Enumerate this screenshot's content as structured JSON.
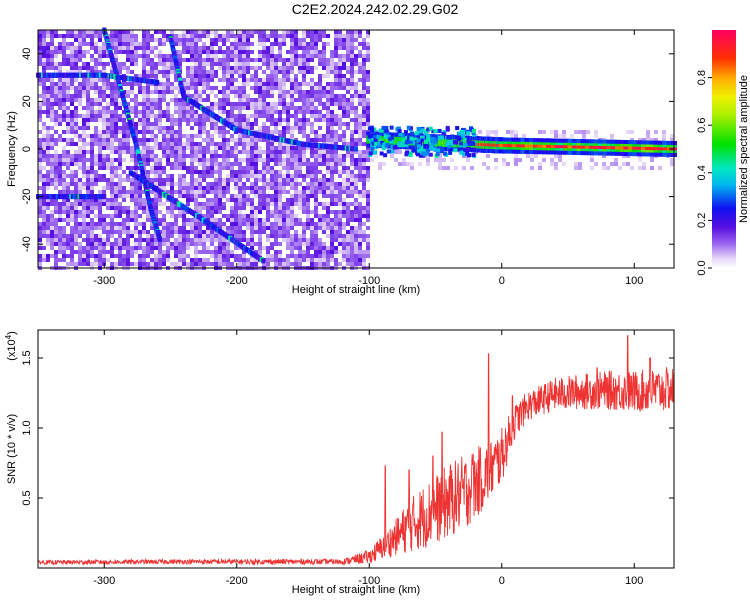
{
  "figure": {
    "title": "C2E2.2024.242.02.29.G02"
  },
  "chart_data": [
    {
      "type": "heatmap",
      "title": "C2E2.2024.242.02.29.G02",
      "xlabel": "Height of straight line (km)",
      "ylabel": "Frequency (Hz)",
      "xlim": [
        -350,
        130
      ],
      "ylim": [
        -50,
        50
      ],
      "x_ticks": [
        -300,
        -200,
        -100,
        0,
        100
      ],
      "x_tick_labels": [
        "-300",
        "-200",
        "-100",
        "0",
        "100"
      ],
      "y_ticks": [
        -40,
        -20,
        0,
        20,
        40
      ],
      "y_tick_labels": [
        "-40",
        "-20",
        "0",
        "20",
        "40"
      ],
      "colorbar": {
        "label": "Normalized spectral amplitude",
        "range": [
          0,
          1
        ],
        "ticks": [
          0.0,
          0.2,
          0.4,
          0.6,
          0.8
        ],
        "tick_labels": [
          "0.0",
          "0.2",
          "0.4",
          "0.6",
          "0.8"
        ],
        "colormap": "rainbow (white→purple→blue→cyan→green→yellow→orange→red)"
      },
      "features": [
        {
          "kind": "dispersive-track",
          "points": [
            [
              -300,
              50
            ],
            [
              -290,
              30
            ],
            [
              -275,
              0
            ],
            [
              -265,
              -25
            ],
            [
              -258,
              -38
            ]
          ]
        },
        {
          "kind": "dispersive-track",
          "points": [
            [
              -250,
              47
            ],
            [
              -240,
              22
            ],
            [
              -200,
              8
            ],
            [
              -150,
              2
            ],
            [
              -110,
              0
            ]
          ]
        },
        {
          "kind": "diagonal-track",
          "points": [
            [
              -280,
              -10
            ],
            [
              -230,
              -28
            ],
            [
              -180,
              -47
            ]
          ]
        },
        {
          "kind": "band",
          "points": [
            [
              -350,
              31
            ],
            [
              -300,
              31
            ],
            [
              -260,
              28
            ]
          ]
        },
        {
          "kind": "band",
          "points": [
            [
              -350,
              -20
            ],
            [
              -300,
              -20
            ]
          ]
        },
        {
          "kind": "carrier-line",
          "points": [
            [
              -100,
              4
            ],
            [
              -60,
              3
            ],
            [
              -20,
              2
            ],
            [
              0,
              1.5
            ],
            [
              130,
              0
            ]
          ]
        }
      ],
      "grid": false,
      "legend": "none"
    },
    {
      "type": "line",
      "xlabel": "Height of straight line (km)",
      "ylabel": "SNR (10 * v/v)",
      "y_multiplier_label": "(x10",
      "y_multiplier_exp": "4",
      "y_multiplier_close": ")",
      "xlim": [
        -350,
        130
      ],
      "ylim": [
        0,
        17000
      ],
      "x_ticks": [
        -300,
        -200,
        -100,
        0,
        100
      ],
      "x_tick_labels": [
        "-300",
        "-200",
        "-100",
        "0",
        "100"
      ],
      "y_ticks": [
        5000,
        10000,
        15000
      ],
      "y_tick_labels": [
        "0.5",
        "1.0",
        "1.5"
      ],
      "series": [
        {
          "color": "#ee3333",
          "envelope_x": [
            -350,
            -250,
            -120,
            -100,
            -90,
            -80,
            -70,
            -60,
            -50,
            -40,
            -30,
            -20,
            -10,
            0,
            10,
            20,
            30,
            40,
            60,
            80,
            100,
            120,
            130
          ],
          "envelope_mean": [
            400,
            450,
            450,
            800,
            1500,
            2200,
            3000,
            3600,
            4200,
            4800,
            5300,
            6000,
            6800,
            8000,
            10500,
            11600,
            12000,
            12400,
            12600,
            12700,
            12600,
            12700,
            12800
          ],
          "envelope_noise": [
            150,
            170,
            200,
            500,
            900,
            1300,
            1900,
            2300,
            2500,
            2700,
            2700,
            2600,
            2200,
            2000,
            1200,
            1100,
            1100,
            1200,
            1300,
            1400,
            1500,
            1600,
            1600
          ]
        }
      ],
      "spikes": [
        [
          -88,
          7300
        ],
        [
          -70,
          7000
        ],
        [
          -52,
          8000
        ],
        [
          -45,
          9700
        ],
        [
          -22,
          7400
        ],
        [
          -10,
          15300
        ],
        [
          8,
          12300
        ],
        [
          72,
          14300
        ],
        [
          95,
          16600
        ],
        [
          112,
          15000
        ]
      ],
      "grid": false,
      "legend": "none"
    }
  ]
}
